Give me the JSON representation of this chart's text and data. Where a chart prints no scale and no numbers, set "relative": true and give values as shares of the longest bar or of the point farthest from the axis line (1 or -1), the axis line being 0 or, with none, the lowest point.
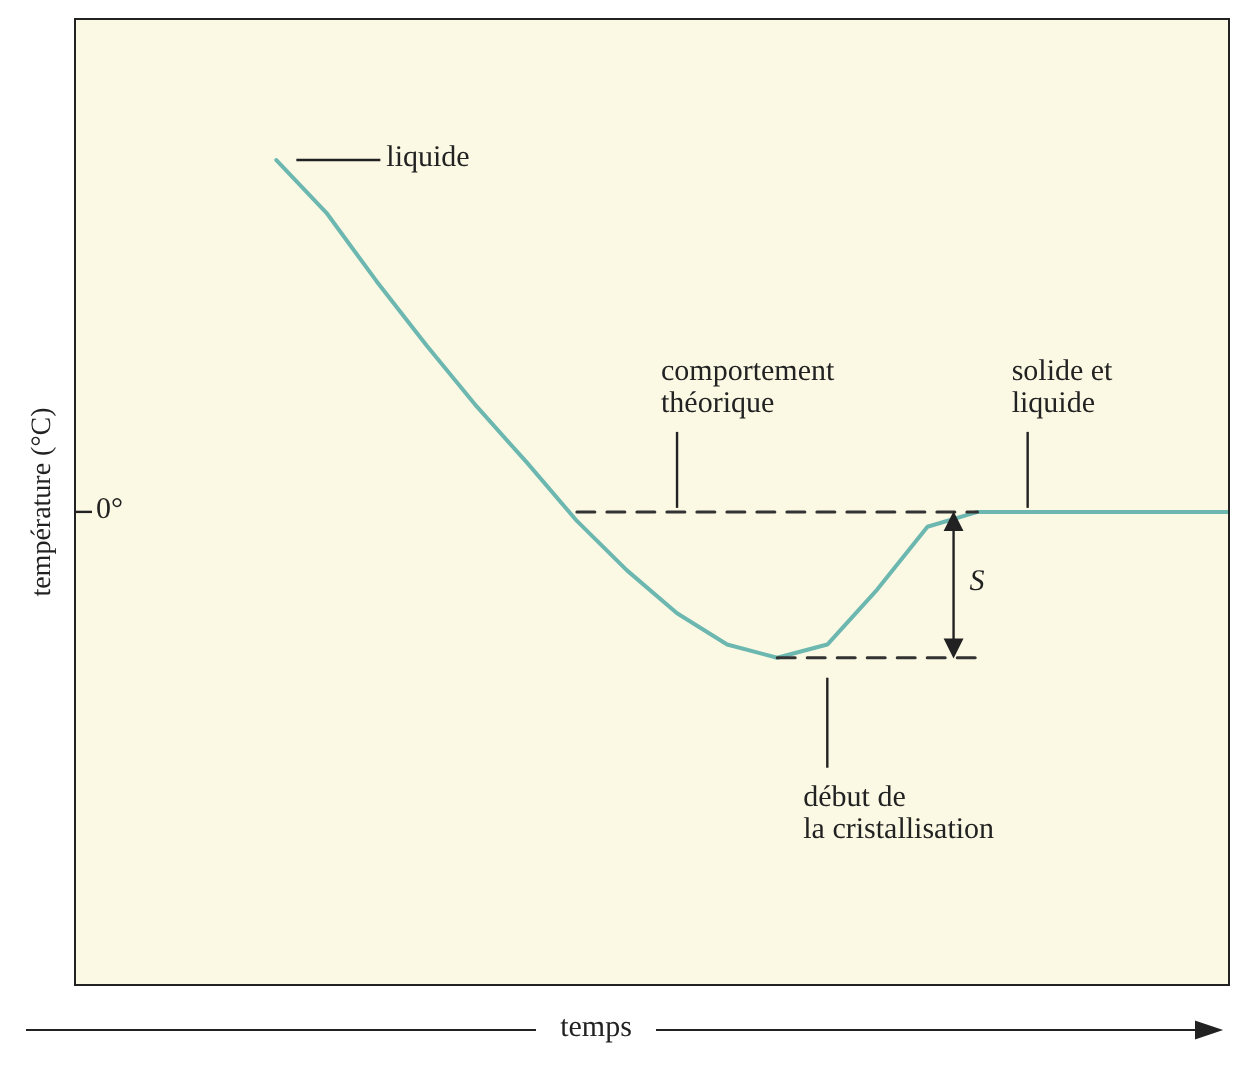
{
  "chart_data": {
    "type": "line",
    "relative": true,
    "xlabel": "temps",
    "ylabel": "température (°C)",
    "tick_labels": false,
    "categories": [
      null,
      null,
      null,
      null,
      null,
      null,
      null,
      null,
      null,
      null,
      null,
      null,
      null,
      null,
      null,
      null,
      null,
      null,
      null,
      null,
      null,
      null,
      null,
      null
    ],
    "series": [
      {
        "color": "#6cb7b0",
        "line_style": "solid",
        "values": [
          null,
          null,
          null,
          null,
          1,
          0.936,
          0.853,
          0.775,
          0.701,
          0.633,
          0.562,
          0.502,
          0.45,
          0.412,
          0.396,
          0.412,
          0.479,
          0.555,
          0.573,
          0.573,
          0.573,
          0.573,
          0.573,
          0.573
        ]
      },
      {
        "color": "#333333",
        "line_style": "dashed",
        "values": [
          null,
          null,
          null,
          null,
          null,
          null,
          null,
          null,
          null,
          null,
          0.573,
          0.573,
          0.573,
          0.573,
          0.573,
          0.573,
          0.573,
          0.573,
          0.573,
          null,
          null,
          null,
          null,
          null
        ]
      },
      {
        "color": "#333333",
        "line_style": "dashed",
        "values": [
          null,
          null,
          null,
          null,
          null,
          null,
          null,
          null,
          null,
          null,
          null,
          null,
          null,
          null,
          0.396,
          0.396,
          0.396,
          0.396,
          0.396,
          null,
          null,
          null,
          null,
          null
        ]
      }
    ],
    "annotations": [
      "liquide",
      "comportement\nthéorique",
      "solide et\nliquide",
      "début de\nla cristallisation",
      "0°",
      "S"
    ]
  }
}
